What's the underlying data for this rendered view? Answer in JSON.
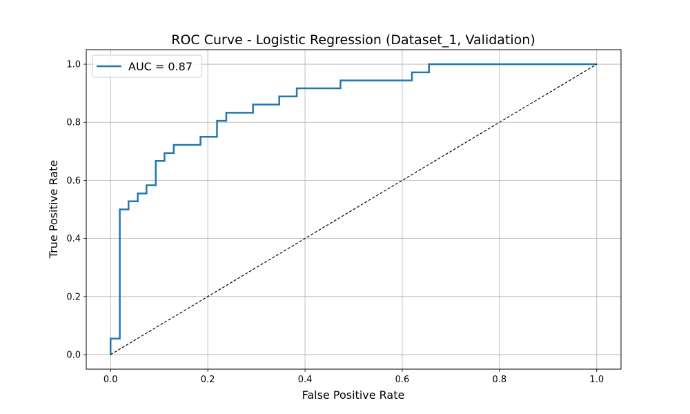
{
  "chart_data": {
    "type": "line",
    "title": "ROC Curve - Logistic Regression (Dataset_1, Validation)",
    "xlabel": "False Positive Rate",
    "ylabel": "True Positive Rate",
    "xlim": [
      -0.05,
      1.05
    ],
    "ylim": [
      -0.05,
      1.05
    ],
    "xticks": [
      0.0,
      0.2,
      0.4,
      0.6,
      0.8,
      1.0
    ],
    "yticks": [
      0.0,
      0.2,
      0.4,
      0.6,
      0.8,
      1.0
    ],
    "xtick_labels": [
      "0.0",
      "0.2",
      "0.4",
      "0.6",
      "0.8",
      "1.0"
    ],
    "ytick_labels": [
      "0.0",
      "0.2",
      "0.4",
      "0.6",
      "0.8",
      "1.0"
    ],
    "grid": true,
    "legend_position": "top-left",
    "series": [
      {
        "name": "AUC = 0.87",
        "color": "#1f77b4",
        "style": "step",
        "x": [
          0.0,
          0.0,
          0.019,
          0.019,
          0.037,
          0.037,
          0.056,
          0.056,
          0.074,
          0.074,
          0.093,
          0.093,
          0.111,
          0.111,
          0.13,
          0.13,
          0.185,
          0.185,
          0.219,
          0.219,
          0.238,
          0.238,
          0.293,
          0.293,
          0.347,
          0.347,
          0.383,
          0.383,
          0.473,
          0.473,
          0.62,
          0.62,
          0.655,
          0.655,
          1.0
        ],
        "y": [
          0.0,
          0.055,
          0.055,
          0.5,
          0.5,
          0.528,
          0.528,
          0.555,
          0.555,
          0.583,
          0.583,
          0.667,
          0.667,
          0.694,
          0.694,
          0.722,
          0.722,
          0.75,
          0.75,
          0.805,
          0.805,
          0.833,
          0.833,
          0.861,
          0.861,
          0.889,
          0.889,
          0.917,
          0.917,
          0.944,
          0.944,
          0.972,
          0.972,
          1.0,
          1.0
        ]
      },
      {
        "name": "",
        "color": "#000000",
        "style": "dashed",
        "x": [
          0.0,
          1.0
        ],
        "y": [
          0.0,
          1.0
        ]
      }
    ],
    "legend": [
      {
        "label": "AUC = 0.87",
        "color": "#1f77b4"
      }
    ]
  }
}
